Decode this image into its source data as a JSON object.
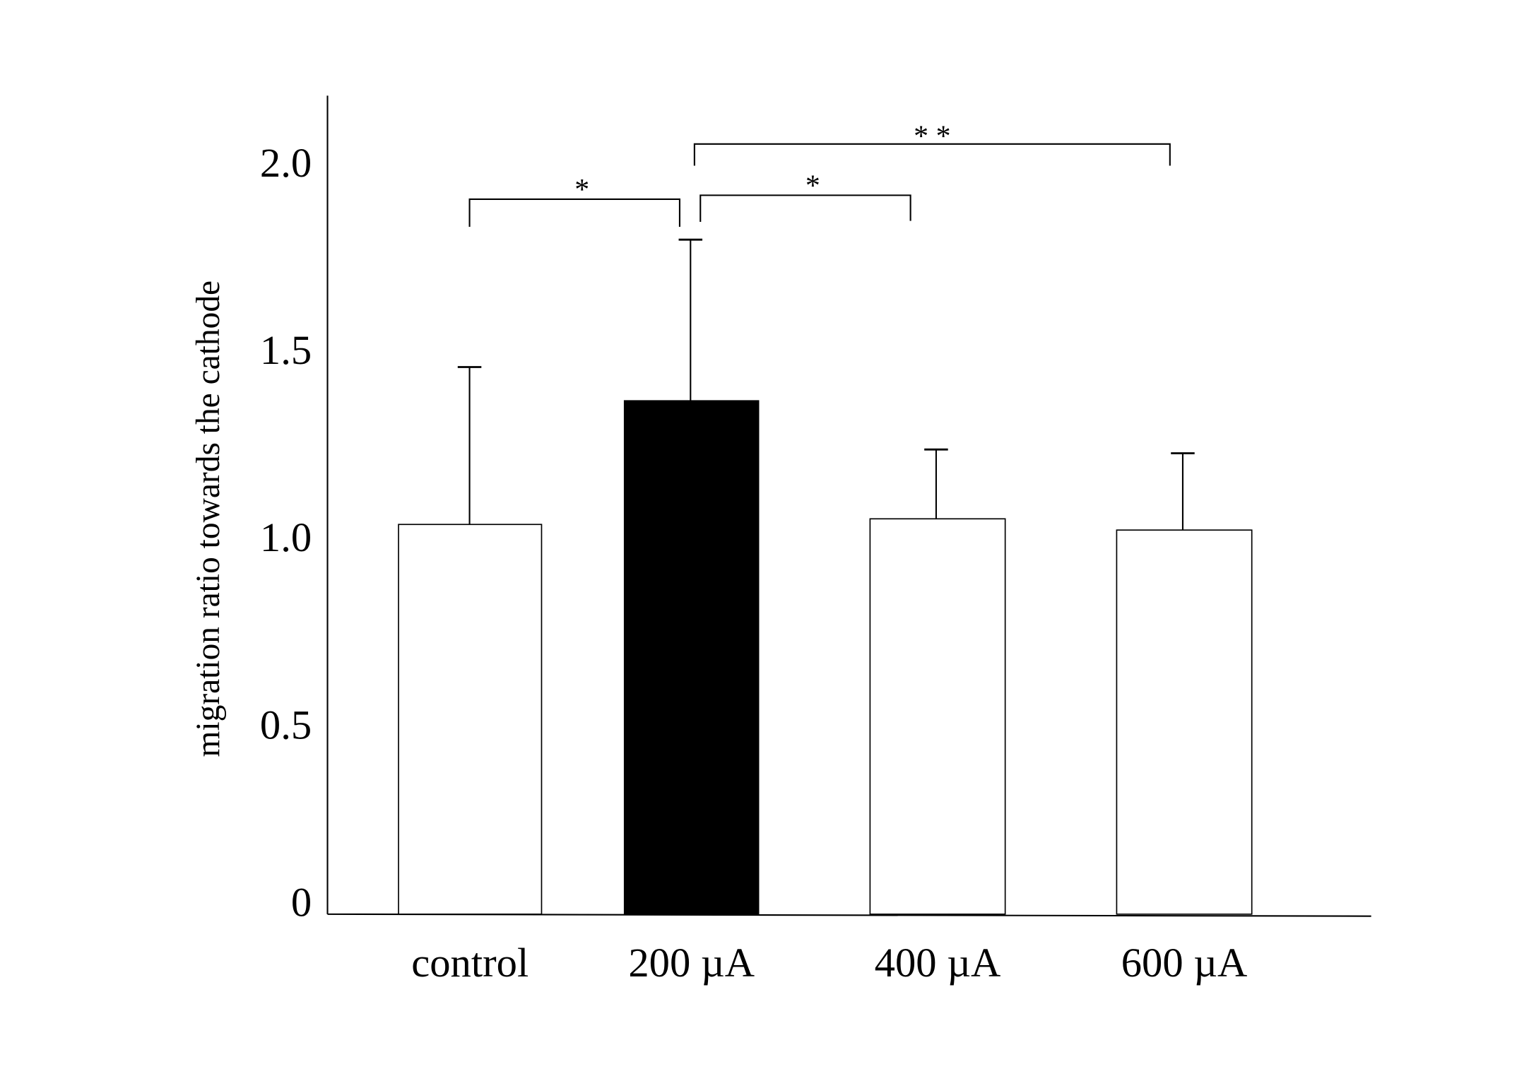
{
  "chart_data": {
    "type": "bar",
    "title": "",
    "xlabel": "",
    "ylabel": "migration ratio towards the cathode",
    "ylim": [
      0,
      2.2
    ],
    "yticks": [
      "0",
      "0.5",
      "1.0",
      "1.5",
      "2.0"
    ],
    "ytick_values": [
      0,
      0.5,
      1.0,
      1.5,
      2.0
    ],
    "categories": [
      "control",
      "200 µA",
      "400 µA",
      "600 µA"
    ],
    "values": [
      1.04,
      1.37,
      1.055,
      1.025
    ],
    "error_upper": [
      1.46,
      1.8,
      1.24,
      1.23
    ],
    "bar_colors": [
      "#ffffff",
      "#000000",
      "#ffffff",
      "#ffffff"
    ],
    "grid": false,
    "legend": "none",
    "significance": [
      {
        "from": 0,
        "to": 1,
        "label": "*"
      },
      {
        "from": 1,
        "to": 2,
        "label": "*"
      },
      {
        "from": 1,
        "to": 3,
        "label": "* *"
      }
    ]
  }
}
